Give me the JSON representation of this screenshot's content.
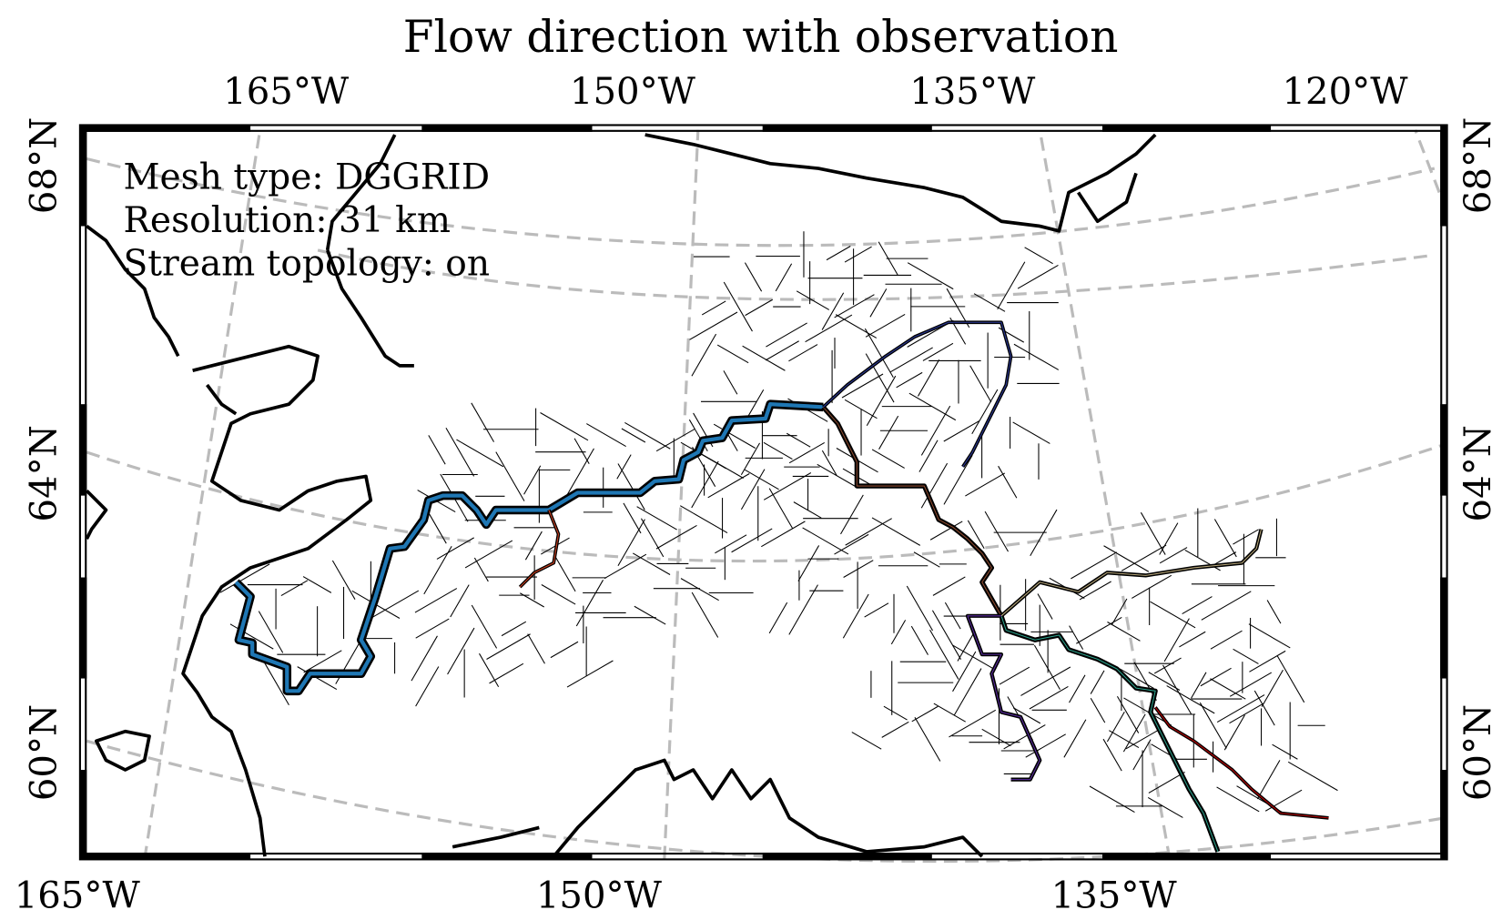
{
  "title": "Flow direction with observation",
  "annotations": [
    "Mesh type: DGGRID",
    "Resolution: 31 km",
    "Stream topology: on"
  ],
  "top_labels": [
    "165°W",
    "150°W",
    "135°W",
    "120°W"
  ],
  "bottom_labels": [
    "165°W",
    "150°W",
    "135°W"
  ],
  "left_labels": [
    "68°N",
    "64°N",
    "60°N"
  ],
  "right_labels": [
    "68°N",
    "64°N",
    "60°N"
  ]
}
